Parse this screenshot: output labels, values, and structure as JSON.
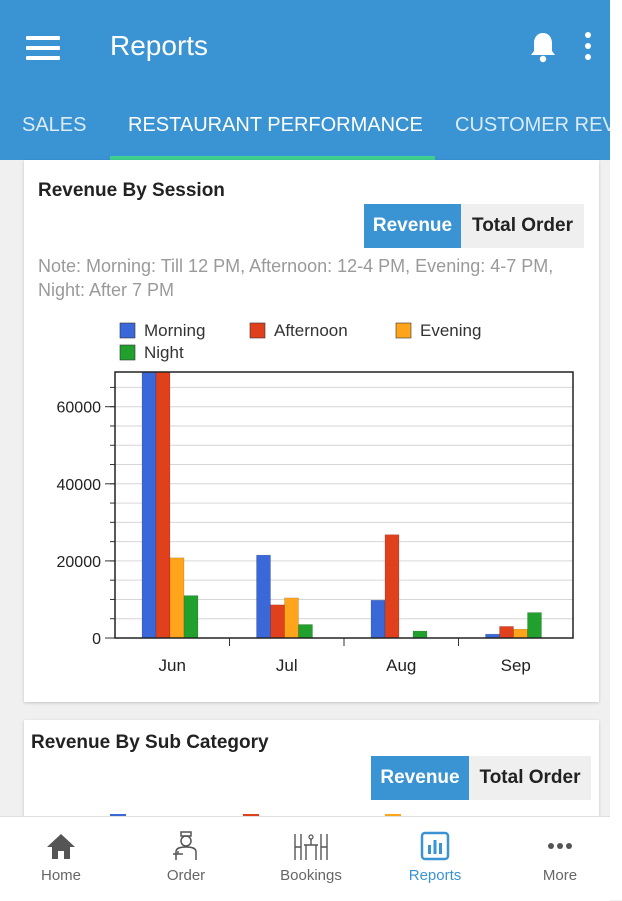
{
  "app_bar": {
    "title": "Reports"
  },
  "tabs": [
    {
      "label": "SALES"
    },
    {
      "label": "RESTAURANT PERFORMANCE"
    },
    {
      "label": "CUSTOMER REV"
    }
  ],
  "revenue_by_session": {
    "title": "Revenue By Session",
    "toggle": {
      "revenue_label": "Revenue",
      "total_order_label": "Total Order",
      "selected": "Revenue"
    },
    "note": "Note: Morning: Till 12 PM, Afternoon: 12-4 PM, Evening: 4-7 PM, Night: After 7 PM"
  },
  "revenue_by_sub_category": {
    "title": "Revenue By Sub Category",
    "toggle": {
      "revenue_label": "Revenue",
      "total_order_label": "Total Order",
      "selected": "Revenue"
    }
  },
  "chart_data": {
    "type": "bar",
    "categories": [
      "Jun",
      "Jul",
      "Aug",
      "Sep"
    ],
    "series": [
      {
        "name": "Morning",
        "color": "#3b68d9",
        "values": [
          69000,
          21500,
          9800,
          1000
        ]
      },
      {
        "name": "Afternoon",
        "color": "#e0401c",
        "values": [
          69000,
          8600,
          26800,
          3000
        ]
      },
      {
        "name": "Evening",
        "color": "#ffa41b",
        "values": [
          20800,
          10400,
          0,
          2300
        ]
      },
      {
        "name": "Night",
        "color": "#22a02e",
        "values": [
          11000,
          3500,
          1800,
          6600
        ]
      }
    ],
    "ylim": [
      0,
      69000
    ],
    "yticks": [
      0,
      20000,
      40000,
      60000
    ],
    "grid": true,
    "legend_position": "top-left"
  },
  "bottom_nav": [
    {
      "label": "Home",
      "icon": "home-icon"
    },
    {
      "label": "Order",
      "icon": "waiter-icon"
    },
    {
      "label": "Bookings",
      "icon": "table-booking-icon"
    },
    {
      "label": "Reports",
      "icon": "reports-icon",
      "active": true
    },
    {
      "label": "More",
      "icon": "more-icon"
    }
  ],
  "colors": {
    "primary": "#3a93d3",
    "tab_indicator": "#3ecf8e"
  }
}
